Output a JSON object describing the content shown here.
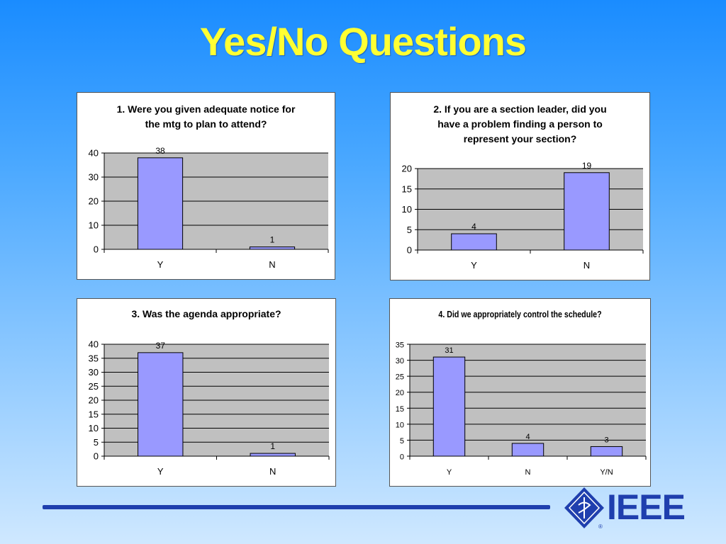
{
  "slide": {
    "title": "Yes/No Questions"
  },
  "logo": {
    "text": "IEEE",
    "mark": "diamond-logo-icon"
  },
  "colors": {
    "bar": "#9999ff",
    "plot_bg": "#c0c0c0",
    "title": "#ffff33",
    "brand": "#1f3fae"
  },
  "chart_data": [
    {
      "type": "bar",
      "title": "1. Were you given adequate notice for the mtg to plan to attend?",
      "title_lines": [
        "1. Were you given adequate notice for",
        "the mtg to plan to attend?"
      ],
      "categories": [
        "Y",
        "N"
      ],
      "values": [
        38,
        1
      ],
      "yticks": [
        0,
        10,
        20,
        30,
        40
      ],
      "ylim": [
        0,
        40
      ],
      "xlabel": "",
      "ylabel": "",
      "grid": true,
      "legend": "none"
    },
    {
      "type": "bar",
      "title": "2. If you are a section leader, did you have a problem finding a person to represent your section?",
      "title_lines": [
        "2. If you are a section leader, did you",
        "have a problem finding a person to",
        "represent your section?"
      ],
      "categories": [
        "Y",
        "N"
      ],
      "values": [
        4,
        19
      ],
      "yticks": [
        0,
        5,
        10,
        15,
        20
      ],
      "ylim": [
        0,
        20
      ],
      "xlabel": "",
      "ylabel": "",
      "grid": true,
      "legend": "none"
    },
    {
      "type": "bar",
      "title": "3. Was the agenda appropriate?",
      "title_lines": [
        "3. Was the agenda appropriate?"
      ],
      "categories": [
        "Y",
        "N"
      ],
      "values": [
        37,
        1
      ],
      "yticks": [
        0,
        5,
        10,
        15,
        20,
        25,
        30,
        35,
        40
      ],
      "ylim": [
        0,
        40
      ],
      "xlabel": "",
      "ylabel": "",
      "grid": true,
      "legend": "none"
    },
    {
      "type": "bar",
      "title": "4. Did we appropriately control the schedule?",
      "title_lines": [
        "4. Did we appropriately control the schedule?"
      ],
      "categories": [
        "Y",
        "N",
        "Y/N"
      ],
      "values": [
        31,
        4,
        3
      ],
      "yticks": [
        0,
        5,
        10,
        15,
        20,
        25,
        30,
        35
      ],
      "ylim": [
        0,
        35
      ],
      "xlabel": "",
      "ylabel": "",
      "grid": true,
      "legend": "none"
    }
  ]
}
